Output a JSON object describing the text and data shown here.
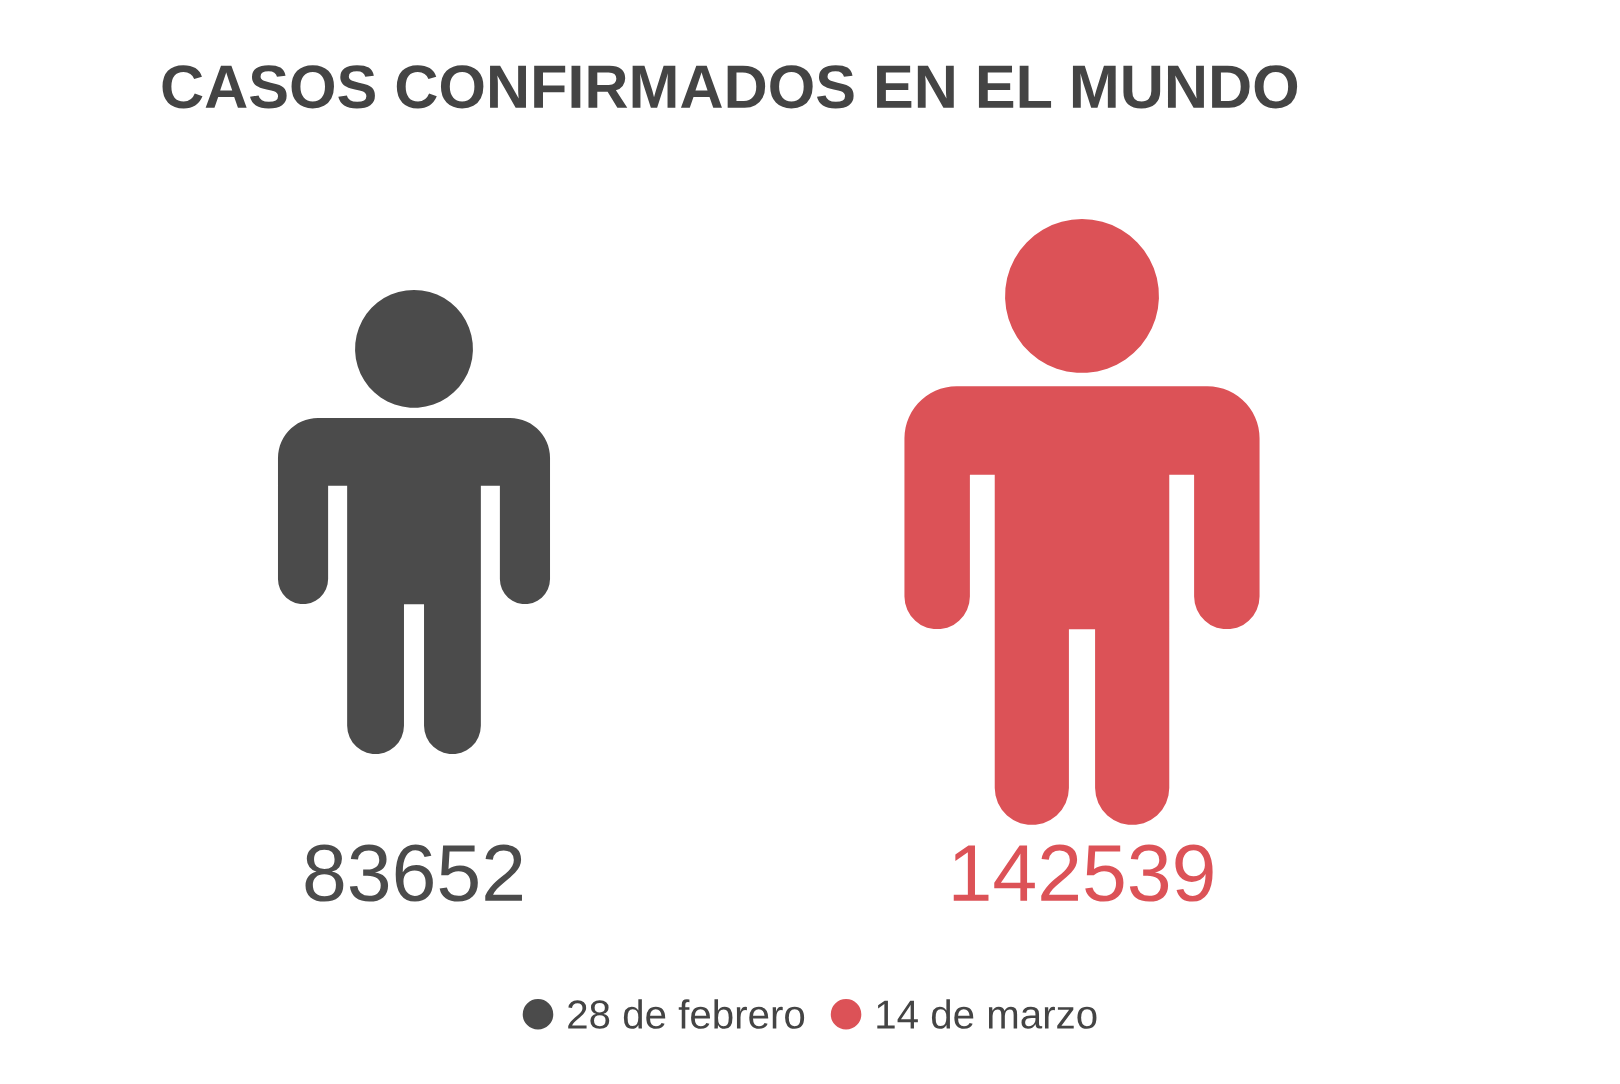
{
  "chart_data": {
    "type": "other",
    "title": "CASOS CONFIRMADOS EN EL MUNDO",
    "categories": [
      null
    ],
    "series": [
      {
        "name": "28 de febrero",
        "color": "#4b4b4b",
        "values": [
          83652
        ]
      },
      {
        "name": "14 de marzo",
        "color": "#dc5257",
        "values": [
          142539
        ]
      }
    ],
    "data_labels": true,
    "legend": "bottom"
  }
}
